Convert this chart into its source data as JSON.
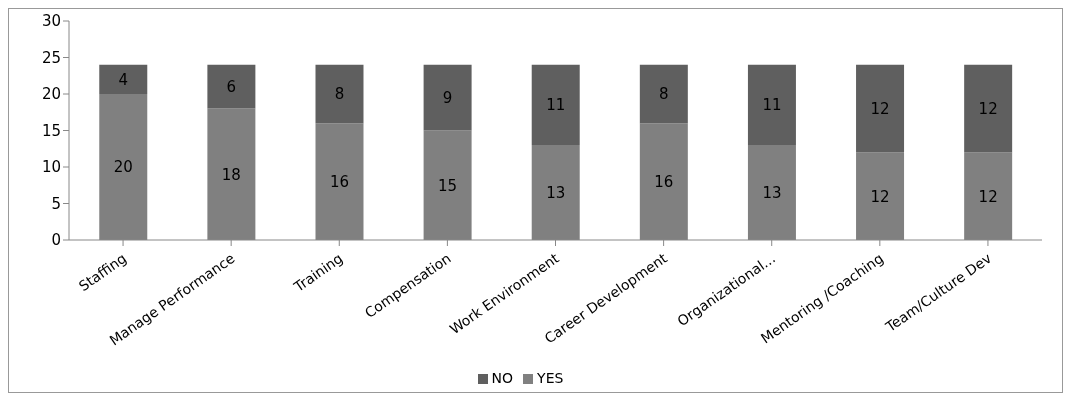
{
  "chart_data": {
    "type": "bar",
    "stacked": true,
    "categories": [
      "Staffing",
      "Manage Performance",
      "Training",
      "Compensation",
      "Work Environment",
      "Career Development",
      "Organizational...",
      "Mentoring /Coaching",
      "Team/Culture Dev"
    ],
    "series": [
      {
        "name": "YES",
        "color": "#808080",
        "values": [
          20,
          18,
          16,
          15,
          13,
          16,
          13,
          12,
          12
        ]
      },
      {
        "name": "NO",
        "color": "#5f5f5f",
        "values": [
          4,
          6,
          8,
          9,
          11,
          8,
          11,
          12,
          12
        ]
      }
    ],
    "ylim": [
      0,
      30
    ],
    "yticks": [
      0,
      5,
      10,
      15,
      20,
      25,
      30
    ],
    "grid": false,
    "legend": "bottom",
    "data_labels": true
  }
}
